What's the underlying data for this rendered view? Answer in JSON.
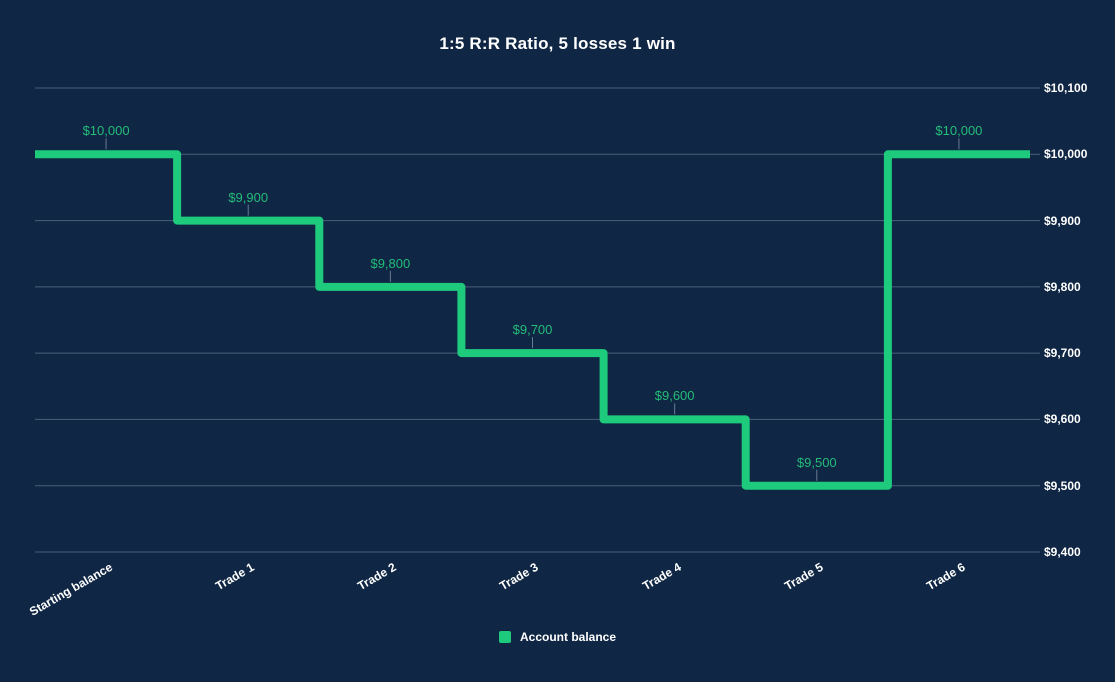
{
  "title": "1:5 R:R Ratio, 5 losses 1 win",
  "legend": {
    "position": "bottom",
    "items": [
      {
        "label": "Account balance",
        "color": "#1ecb7c"
      }
    ]
  },
  "colors": {
    "background": "#0f2644",
    "line": "#1ecb7c",
    "data_label": "#24bd79",
    "grid": "rgba(214,228,244,0.30)",
    "leader": "rgba(214,228,244,0.45)",
    "axis_text": "#ffffff"
  },
  "chart_data": {
    "type": "line",
    "stepped": true,
    "title": "1:5 R:R Ratio, 5 losses 1 win",
    "xlabel": "",
    "ylabel": "",
    "grid": true,
    "legend_position": "bottom",
    "categories": [
      "Starting balance",
      "Trade 1",
      "Trade 2",
      "Trade 3",
      "Trade 4",
      "Trade 5",
      "Trade 6"
    ],
    "series": [
      {
        "name": "Account balance",
        "values": [
          10000,
          9900,
          9800,
          9700,
          9600,
          9500,
          10000
        ]
      }
    ],
    "point_labels": [
      "$10,000",
      "$9,900",
      "$9,800",
      "$9,700",
      "$9,600",
      "$9,500",
      "$10,000"
    ],
    "ylim": [
      9400,
      10100
    ],
    "y_ticks": [
      {
        "value": 10100,
        "label": "$10,100"
      },
      {
        "value": 10000,
        "label": "$10,000"
      },
      {
        "value": 9900,
        "label": "$9,900"
      },
      {
        "value": 9800,
        "label": "$9,800"
      },
      {
        "value": 9700,
        "label": "$9,700"
      },
      {
        "value": 9600,
        "label": "$9,600"
      },
      {
        "value": 9500,
        "label": "$9,500"
      },
      {
        "value": 9400,
        "label": "$9,400"
      }
    ]
  }
}
